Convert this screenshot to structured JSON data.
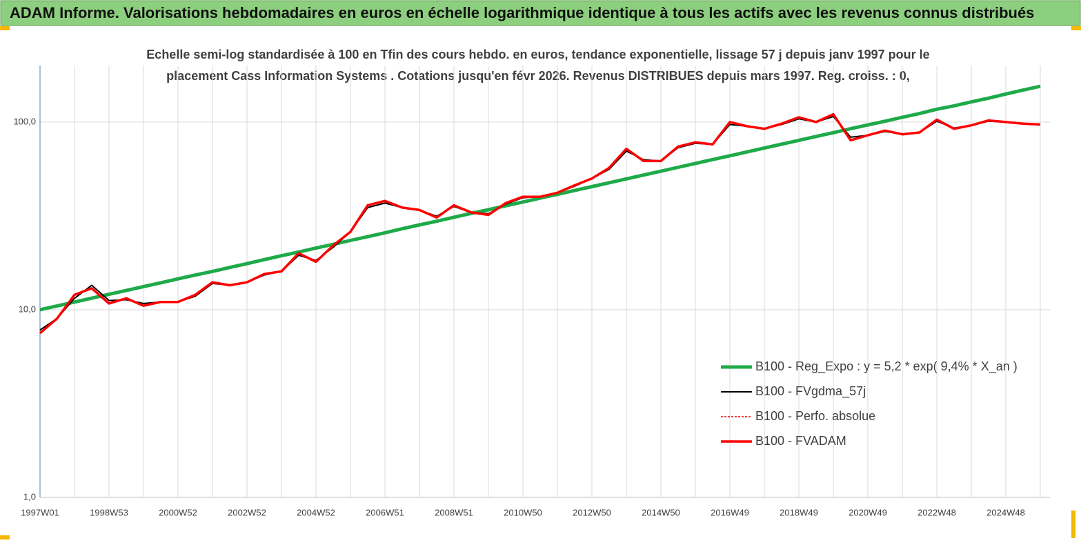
{
  "chart_data": {
    "type": "line",
    "title": "ADAM Informe. Valorisations hebdomadaires en euros en échelle logarithmique identique à tous les actifs avec les revenus connus distribués",
    "subtitle": [
      "Echelle semi-log standardisée à 100 en Tfin des cours hebdo. en euros, tendance exponentielle, lissage 57 j depuis janv 1997 pour le",
      "placement Cass Information Systems . Cotations jusqu'en févr 2026. Revenus DISTRIBUES depuis mars 1997. Reg. croiss. : 0,"
    ],
    "categories": [
      "1997W01",
      null,
      null,
      null,
      "1998W53",
      null,
      null,
      null,
      "2000W52",
      null,
      null,
      null,
      "2002W52",
      null,
      null,
      null,
      "2004W52",
      null,
      null,
      null,
      "2006W51",
      null,
      null,
      null,
      "2008W51",
      null,
      null,
      null,
      "2010W50",
      null,
      null,
      null,
      "2012W50",
      null,
      null,
      null,
      "2014W50",
      null,
      null,
      null,
      "2016W49",
      null,
      null,
      null,
      "2018W49",
      null,
      null,
      null,
      "2020W49",
      null,
      null,
      null,
      "2022W48",
      null,
      null,
      null,
      "2024W48",
      null,
      null
    ],
    "log_scale": true,
    "ylim": [
      1,
      200
    ],
    "yticks": [
      {
        "value": 1,
        "label": "1,0"
      },
      {
        "value": 10,
        "label": "10,0"
      },
      {
        "value": 100,
        "label": "100,0"
      }
    ],
    "grid": true,
    "legend": "lower right",
    "series": [
      {
        "name": "B100 - Reg_Expo : y = 5,2 * exp( 9,4% *  X_an )",
        "color": "#1faa4a",
        "values": [
          10,
          10.48,
          10.99,
          11.52,
          12.08,
          12.66,
          13.28,
          13.92,
          14.6,
          15.3,
          16.0,
          16.8,
          17.6,
          18.5,
          19.4,
          20.3,
          21.3,
          22.3,
          23.4,
          24.5,
          25.7,
          27,
          28.3,
          29.6,
          31.1,
          32.6,
          34.1,
          35.8,
          37.5,
          39.3,
          41.2,
          43.2,
          45.3,
          47.5,
          49.8,
          52.2,
          54.7,
          57.4,
          60.2,
          63.1,
          66.1,
          69.3,
          72.7,
          76.2,
          79.9,
          83.8,
          87.8,
          92.1,
          96.5,
          101,
          106,
          111,
          117,
          122,
          128,
          134,
          141,
          148,
          155
        ]
      },
      {
        "name": "B100 - FVgdma_57j",
        "color": "#000000",
        "values": [
          7.8,
          9,
          11.5,
          13.5,
          11.2,
          11.3,
          10.8,
          11,
          11,
          11.8,
          13.8,
          13.5,
          14,
          15.3,
          16,
          19.5,
          18.3,
          21.5,
          26,
          35,
          37,
          35,
          34,
          31.5,
          35.5,
          33,
          32.5,
          36.5,
          39.5,
          40,
          42,
          45.5,
          50,
          56,
          70,
          63,
          62,
          73,
          77,
          76,
          97,
          95,
          92,
          97,
          104,
          100,
          107,
          83,
          85,
          89,
          86.5,
          88,
          101,
          93,
          96,
          101,
          100,
          98,
          97.5
        ]
      },
      {
        "name": "B100 - Perfo. absolue",
        "color": "#e00000",
        "values": [
          7.5,
          9,
          12,
          13,
          10.8,
          11.5,
          10.5,
          11,
          11,
          12,
          14,
          13.5,
          14,
          15.5,
          16,
          20,
          18,
          22,
          26,
          36,
          38,
          35,
          34,
          31,
          36,
          33,
          32,
          37,
          40,
          40,
          42,
          46,
          50,
          57,
          72,
          62,
          62,
          74,
          78,
          76,
          100,
          95,
          92,
          98,
          106,
          100,
          110,
          80,
          85,
          90,
          86,
          88,
          103,
          92,
          96,
          102,
          100,
          98,
          97
        ]
      },
      {
        "name": "B100 - FVADAM",
        "color": "#ff0000",
        "values": [
          7.5,
          9,
          12,
          13,
          10.8,
          11.5,
          10.5,
          11,
          11,
          12,
          14,
          13.5,
          14,
          15.5,
          16,
          20,
          18,
          22,
          26,
          36,
          38,
          35,
          34,
          31,
          36,
          33,
          32,
          37,
          40,
          40,
          42,
          46,
          50,
          57,
          72,
          62,
          62,
          74,
          78,
          76,
          100,
          95,
          92,
          98,
          106,
          100,
          110,
          80,
          85,
          90,
          86,
          88,
          103,
          92,
          96,
          102,
          100,
          98,
          97
        ]
      }
    ]
  }
}
